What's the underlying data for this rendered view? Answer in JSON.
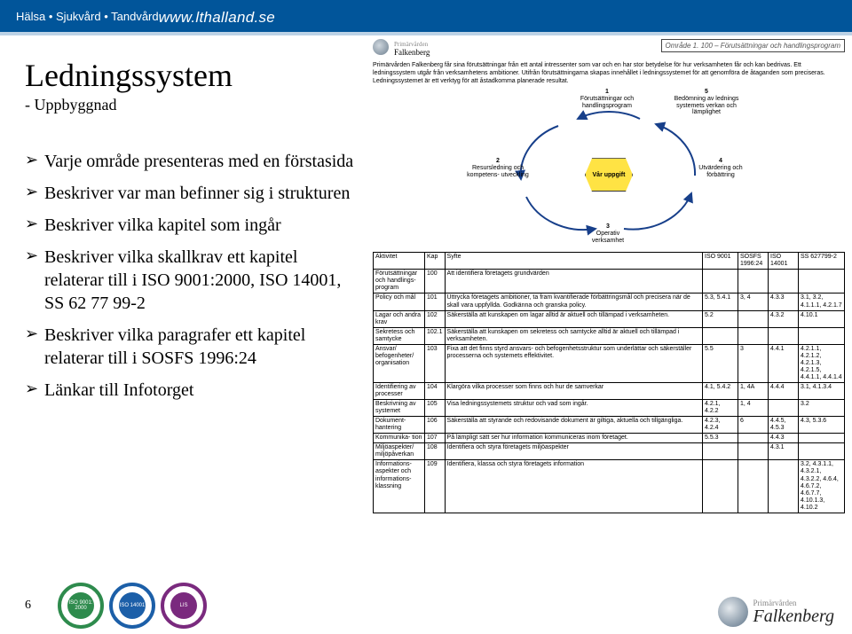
{
  "banner": {
    "left": "Hälsa • Sjukvård • Tandvård",
    "right": "www.lthalland.se",
    "bg": "#01559a"
  },
  "title": "Ledningssystem",
  "subtitle": "- Uppbyggnad",
  "bullets": [
    "Varje område presenteras med en förstasida",
    "Beskriver var man befinner sig i strukturen",
    "Beskriver vilka kapitel som ingår",
    "Beskriver vilka skallkrav ett kapitel relaterar till i ISO 9001:2000, ISO 14001, SS 62 77 99-2",
    "Beskriver vilka paragrafer ett kapitel relaterar till i SOSFS 1996:24",
    "Länkar till Infotorget"
  ],
  "mini": {
    "org1": "Primärvården",
    "org2": "Falkenberg",
    "area": "Område 1. 100 – Förutsättningar och handlingsprogram",
    "intro": "Primärvården Falkenberg får sina förutsättningar från ett antal intressenter som var och en har stor betydelse för hur verksamheten får och kan bedrivas. Ett ledningssystem utgår från verksamhetens ambitioner. Utifrån förutsättningarna skapas innehållet i ledningssystemet för att genomföra de åtaganden som preciseras. Ledningssystemet är ett verktyg för att åstadkomma planerade resultat.",
    "nodes": {
      "n1": {
        "num": "1",
        "text": "Förutsättningar och handlingsprogram"
      },
      "n2": {
        "num": "2",
        "text": "Resursledning och kompetens- utveckling"
      },
      "n3": {
        "num": "3",
        "text": "Operativ verksamhet"
      },
      "n4": {
        "num": "4",
        "text": "Utvärdering och förbättring"
      },
      "n5": {
        "num": "5",
        "text": "Bedömning av lednings systemets verkan och lämplighet"
      },
      "center": "Vår uppgift"
    }
  },
  "table": {
    "headers": [
      "Aktivitet",
      "Kap",
      "Syfte",
      "ISO 9001",
      "SOSFS 1996:24",
      "ISO 14001",
      "SS 627799-2"
    ],
    "rows": [
      [
        "Förutsättningar och handlings- program",
        "100",
        "Att identifiera företagets grundvärden",
        "",
        "",
        "",
        ""
      ],
      [
        "Policy och mål",
        "101",
        "Uttrycka företagets ambitioner, ta fram kvantifierade förbättringsmål och precisera när de skall vara uppfyllda. Godkänna och granska policy.",
        "5.3, 5.4.1",
        "3, 4",
        "4.3.3",
        "3.1, 3.2, 4.1.1.1, 4.2.1.7"
      ],
      [
        "Lagar och andra krav",
        "102",
        "Säkerställa att kunskapen om lagar alltid är aktuell och tillämpad i verksamheten.",
        "5.2",
        "",
        "4.3.2",
        "4.10.1"
      ],
      [
        "Sekretess och samtycke",
        "102.1",
        "Säkerställa att kunskapen om sekretess och samtycke alltid är aktuell och tillämpad i verksamheten.",
        "",
        "",
        "",
        ""
      ],
      [
        "Ansvar/ befogenheter/ organisation",
        "103",
        "Fixa att det finns styrd ansvars- och befogenhetsstruktur som underlättar och säkerställer processerna och systemets effektivitet.",
        "5.5",
        "3",
        "4.4.1",
        "4.2.1.1, 4.2.1.2, 4.2.1.3, 4.2.1.5, 4.4.1.1, 4.4.1.4"
      ],
      [
        "Identifiering av processer",
        "104",
        "Klargöra vilka processer som finns och hur de samverkar",
        "4.1, 5.4.2",
        "1, 4A",
        "4.4.4",
        "3.1, 4.1.3.4"
      ],
      [
        "Beskrivning av systemet",
        "105",
        "Visa ledningssystemets struktur och vad som ingår.",
        "4.2.1, 4.2.2",
        "1, 4",
        "",
        "3.2"
      ],
      [
        "Dokument- hantering",
        "106",
        "Säkerställa att styrande och redovisande dokument är giltiga, aktuella och tillgängliga.",
        "4.2.3, 4.2.4",
        "6",
        "4.4.5, 4.5.3",
        "4.3, 5.3.6"
      ],
      [
        "Kommunika- tion",
        "107",
        "På lämpligt sätt ser hur information kommuniceras inom företaget.",
        "5.5.3",
        "",
        "4.4.3",
        ""
      ],
      [
        "Miljöaspekter/ miljöpåverkan",
        "108",
        "Identifiera och styra företagets miljöaspekter",
        "",
        "",
        "4.3.1",
        ""
      ],
      [
        "Informations- aspekter och informations- klassning",
        "109",
        "Identifiera, klassa och styra företagets information",
        "",
        "",
        "",
        "3.2, 4.3.1.1, 4.3.2.1, 4.3.2.2, 4.6.4, 4.6.7.2, 4.6.7.7, 4.10.1.3, 4.10.2"
      ]
    ]
  },
  "footer": {
    "page": "6",
    "certs": [
      {
        "ring": "#2e8b4d",
        "inner": "#2e8b4d",
        "text": "ISO 9001: 2000"
      },
      {
        "ring": "#1c5fa8",
        "inner": "#1c5fa8",
        "text": "ISO 14001"
      },
      {
        "ring": "#7a2a7e",
        "inner": "#7a2a7e",
        "text": "LIS"
      }
    ],
    "brand1": "Primärvården",
    "brand2": "Falkenberg"
  }
}
